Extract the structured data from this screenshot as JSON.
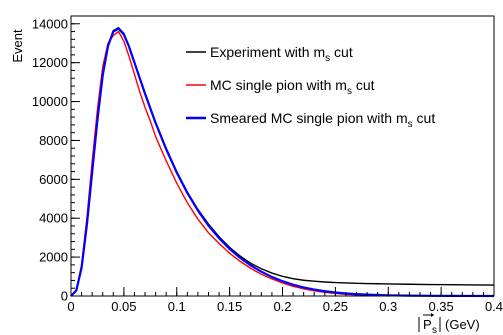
{
  "chart_data": {
    "type": "line",
    "xlabel": "|P_s| (GeV)",
    "ylabel": "Event",
    "xlim": [
      0,
      0.4
    ],
    "ylim": [
      0,
      14400
    ],
    "x_ticks": [
      "0",
      "0.05",
      "0.1",
      "0.15",
      "0.2",
      "0.25",
      "0.3",
      "0.35",
      "0.4"
    ],
    "y_ticks": [
      "0",
      "2000",
      "4000",
      "6000",
      "8000",
      "10000",
      "12000",
      "14000"
    ],
    "legend_position": "top-right",
    "x": [
      0.0,
      0.005,
      0.01,
      0.015,
      0.02,
      0.025,
      0.03,
      0.035,
      0.04,
      0.045,
      0.05,
      0.055,
      0.06,
      0.065,
      0.07,
      0.075,
      0.08,
      0.09,
      0.1,
      0.11,
      0.12,
      0.13,
      0.14,
      0.15,
      0.16,
      0.17,
      0.18,
      0.19,
      0.2,
      0.21,
      0.22,
      0.23,
      0.24,
      0.25,
      0.26,
      0.27,
      0.28,
      0.29,
      0.3,
      0.32,
      0.34,
      0.36,
      0.38,
      0.4
    ],
    "series": [
      {
        "name": "Experiment with m_s cut",
        "color": "#000000",
        "values": [
          0,
          300,
          1500,
          3700,
          6400,
          9100,
          11400,
          12900,
          13650,
          13800,
          13500,
          12850,
          12050,
          11250,
          10450,
          9700,
          8950,
          7600,
          6400,
          5350,
          4450,
          3700,
          3050,
          2500,
          2050,
          1680,
          1400,
          1180,
          1010,
          890,
          810,
          760,
          720,
          690,
          670,
          650,
          640,
          630,
          620,
          605,
          590,
          580,
          570,
          560
        ]
      },
      {
        "name": "MC single pion with m_s cut",
        "color": "#ff0000",
        "values": [
          0,
          300,
          1600,
          4000,
          6900,
          9600,
          11800,
          13000,
          13400,
          13600,
          13100,
          12300,
          11400,
          10500,
          9700,
          9000,
          8200,
          6950,
          5800,
          4800,
          3950,
          3250,
          2700,
          2200,
          1780,
          1420,
          1120,
          880,
          670,
          500,
          370,
          270,
          190,
          130,
          90,
          60,
          40,
          30,
          20,
          10,
          5,
          3,
          2,
          1
        ]
      },
      {
        "name": "Smeared MC single pion with m_s cut",
        "color": "#0000ff",
        "values": [
          0,
          280,
          1450,
          3650,
          6350,
          9050,
          11350,
          12850,
          13600,
          13750,
          13450,
          12800,
          12000,
          11200,
          10400,
          9650,
          8900,
          7550,
          6350,
          5300,
          4400,
          3620,
          2980,
          2420,
          1960,
          1570,
          1250,
          980,
          760,
          580,
          440,
          330,
          245,
          180,
          130,
          95,
          70,
          50,
          35,
          18,
          9,
          5,
          3,
          1
        ]
      }
    ]
  },
  "legend": {
    "items": [
      {
        "text": "Experiment with m",
        "sub": "s",
        "tail": " cut",
        "color": "#000000"
      },
      {
        "text": "MC single pion with m",
        "sub": "s",
        "tail": " cut",
        "color": "#ff0000"
      },
      {
        "text": "Smeared MC single pion with m",
        "sub": "s",
        "tail": " cut",
        "color": "#0000ff"
      }
    ]
  },
  "xaxis_unit": "(GeV)",
  "xaxis_symbol": "P",
  "xaxis_symbol_sub": "s"
}
